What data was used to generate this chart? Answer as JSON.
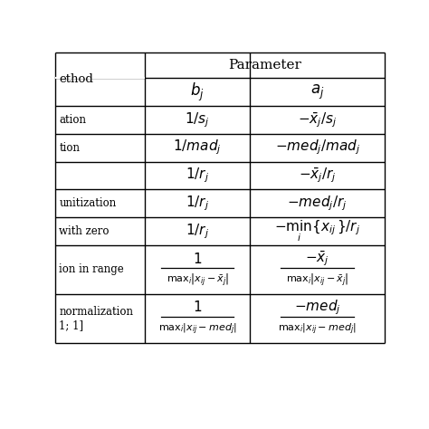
{
  "bg_color": "#ffffff",
  "line_color": "#000000",
  "text_color": "#000000",
  "hlines": [
    2,
    38,
    78,
    118,
    158,
    198,
    238,
    278,
    348,
    418
  ],
  "vlines": [
    2,
    130,
    280,
    472
  ],
  "param_header": "Parameter",
  "method_label": "ethod",
  "bj_header": "$b_j$",
  "aj_header": "$a_j$",
  "row_labels": [
    "ation",
    "tion",
    "",
    "unitization",
    "with zero",
    "ion in range",
    "normalization\n1; 1]"
  ],
  "bj_simple": [
    "$1/s_j$",
    "$1/mad_j$",
    "$1/r_j$",
    "$1/r_j$",
    "$1/r_j$"
  ],
  "aj_simple": [
    "$-\\bar{x}_j/s_j$",
    "$-med_j/mad_j$",
    "$-\\bar{x}_j/r_j$",
    "$-med_j/r_j$",
    "$-\\min_i\\{x_{ij}\\}/r_j$"
  ]
}
